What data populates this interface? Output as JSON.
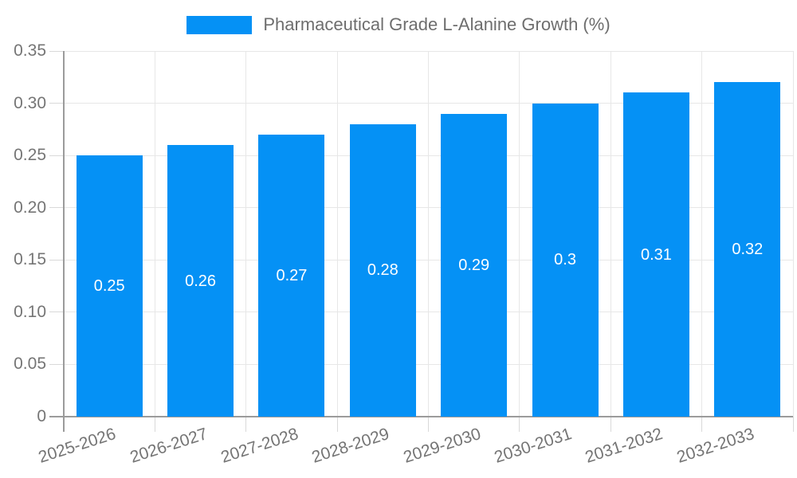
{
  "legend": {
    "label": "Pharmaceutical Grade L-Alanine Growth (%)"
  },
  "chart_data": {
    "type": "bar",
    "title": "Pharmaceutical Grade L-Alanine Growth (%)",
    "categories": [
      "2025-2026",
      "2026-2027",
      "2027-2028",
      "2028-2029",
      "2029-2030",
      "2030-2031",
      "2031-2032",
      "2032-2033"
    ],
    "values": [
      0.25,
      0.26,
      0.27,
      0.28,
      0.29,
      0.3,
      0.31,
      0.32
    ],
    "bar_labels": [
      "0.25",
      "0.26",
      "0.27",
      "0.28",
      "0.29",
      "0.3",
      "0.31",
      "0.32"
    ],
    "xlabel": "",
    "ylabel": "",
    "ylim": [
      0,
      0.35
    ],
    "yticks": [
      0,
      0.05,
      0.1,
      0.15,
      0.2,
      0.25,
      0.3,
      0.35
    ],
    "ytick_labels": [
      "0",
      "0.05",
      "0.10",
      "0.15",
      "0.20",
      "0.25",
      "0.30",
      "0.35"
    ],
    "grid": true,
    "legend_position": "top"
  },
  "colors": {
    "bar": "#0591f5",
    "bar_label": "#ffffff",
    "axis": "#9b9b9b",
    "grid": "#e7e7e7",
    "tick": "#d9d9d9",
    "text": "#757575",
    "background": "#ffffff"
  }
}
